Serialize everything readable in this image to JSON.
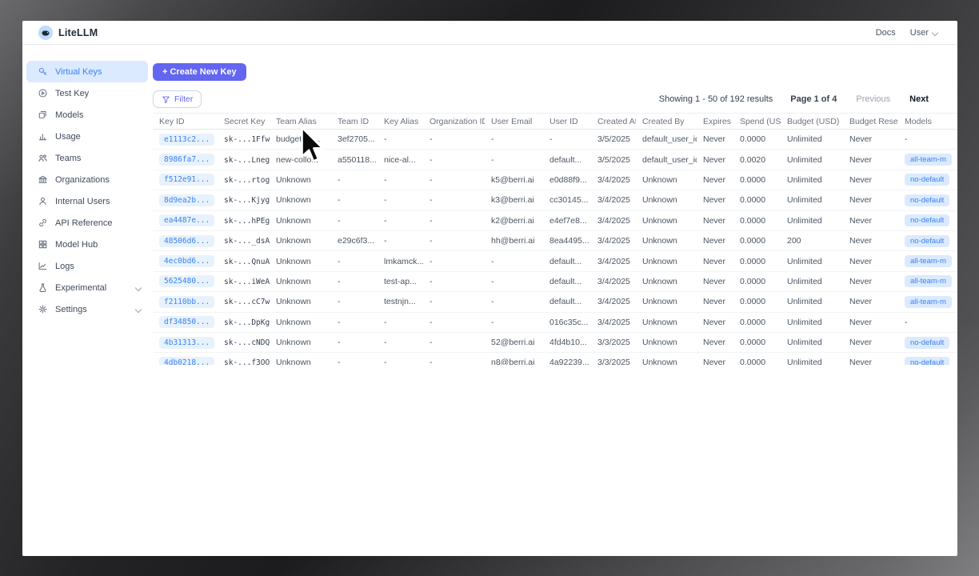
{
  "header": {
    "brand": "LiteLLM",
    "docs_label": "Docs",
    "user_label": "User"
  },
  "sidebar": {
    "items": [
      {
        "icon": "key-icon",
        "label": "Virtual Keys",
        "active": true,
        "expandable": false
      },
      {
        "icon": "play-circle-icon",
        "label": "Test Key",
        "active": false,
        "expandable": false
      },
      {
        "icon": "models-icon",
        "label": "Models",
        "active": false,
        "expandable": false
      },
      {
        "icon": "bar-chart-icon",
        "label": "Usage",
        "active": false,
        "expandable": false
      },
      {
        "icon": "teams-icon",
        "label": "Teams",
        "active": false,
        "expandable": false
      },
      {
        "icon": "bank-icon",
        "label": "Organizations",
        "active": false,
        "expandable": false
      },
      {
        "icon": "user-icon",
        "label": "Internal Users",
        "active": false,
        "expandable": false
      },
      {
        "icon": "link-icon",
        "label": "API Reference",
        "active": false,
        "expandable": false
      },
      {
        "icon": "grid-icon",
        "label": "Model Hub",
        "active": false,
        "expandable": false
      },
      {
        "icon": "line-chart-icon",
        "label": "Logs",
        "active": false,
        "expandable": false
      },
      {
        "icon": "flask-icon",
        "label": "Experimental",
        "active": false,
        "expandable": true
      },
      {
        "icon": "gear-icon",
        "label": "Settings",
        "active": false,
        "expandable": true
      }
    ]
  },
  "toolbar": {
    "create_button": "+ Create New Key",
    "filter_label": "Filter",
    "results_summary": "Showing 1 - 50 of 192 results",
    "page_indicator": "Page 1 of 4",
    "prev_label": "Previous",
    "next_label": "Next"
  },
  "table": {
    "columns": [
      {
        "key": "key_id",
        "label": "Key ID"
      },
      {
        "key": "secret_key",
        "label": "Secret Key"
      },
      {
        "key": "team_alias",
        "label": "Team Alias"
      },
      {
        "key": "team_id",
        "label": "Team ID"
      },
      {
        "key": "key_alias",
        "label": "Key Alias"
      },
      {
        "key": "org_id",
        "label": "Organization ID"
      },
      {
        "key": "user_email",
        "label": "User Email"
      },
      {
        "key": "user_id",
        "label": "User ID"
      },
      {
        "key": "created_at",
        "label": "Created At"
      },
      {
        "key": "created_by",
        "label": "Created By"
      },
      {
        "key": "expires",
        "label": "Expires"
      },
      {
        "key": "spend",
        "label": "Spend (USD)"
      },
      {
        "key": "budget",
        "label": "Budget (USD)"
      },
      {
        "key": "budget_reset",
        "label": "Budget Reset"
      },
      {
        "key": "models",
        "label": "Models"
      }
    ],
    "rows": [
      {
        "key_id": "e1113c2...",
        "secret_key": "sk-...1Ffw",
        "team_alias": "budget_te...",
        "team_id": "3ef2705...",
        "key_alias": "-",
        "org_id": "-",
        "user_email": "-",
        "user_id": "-",
        "created_at": "3/5/2025",
        "created_by": "default_user_id",
        "expires": "Never",
        "spend": "0.0000",
        "budget": "Unlimited",
        "budget_reset": "Never",
        "models": "-"
      },
      {
        "key_id": "8986fa7...",
        "secret_key": "sk-...Lneg",
        "team_alias": "new-collo...",
        "team_id": "a550118...",
        "key_alias": "nice-al...",
        "org_id": "-",
        "user_email": "-",
        "user_id": "default...",
        "created_at": "3/5/2025",
        "created_by": "default_user_id",
        "expires": "Never",
        "spend": "0.0020",
        "budget": "Unlimited",
        "budget_reset": "Never",
        "models": "all-team-m"
      },
      {
        "key_id": "f512e91...",
        "secret_key": "sk-...rtog",
        "team_alias": "Unknown",
        "team_id": "-",
        "key_alias": "-",
        "org_id": "-",
        "user_email": "k5@berri.ai",
        "user_id": "e0d88f9...",
        "created_at": "3/4/2025",
        "created_by": "Unknown",
        "expires": "Never",
        "spend": "0.0000",
        "budget": "Unlimited",
        "budget_reset": "Never",
        "models": "no-default"
      },
      {
        "key_id": "8d9ea2b...",
        "secret_key": "sk-...Kjyg",
        "team_alias": "Unknown",
        "team_id": "-",
        "key_alias": "-",
        "org_id": "-",
        "user_email": "k3@berri.ai",
        "user_id": "cc30145...",
        "created_at": "3/4/2025",
        "created_by": "Unknown",
        "expires": "Never",
        "spend": "0.0000",
        "budget": "Unlimited",
        "budget_reset": "Never",
        "models": "no-default"
      },
      {
        "key_id": "ea4487e...",
        "secret_key": "sk-...hPEg",
        "team_alias": "Unknown",
        "team_id": "-",
        "key_alias": "-",
        "org_id": "-",
        "user_email": "k2@berri.ai",
        "user_id": "e4ef7e8...",
        "created_at": "3/4/2025",
        "created_by": "Unknown",
        "expires": "Never",
        "spend": "0.0000",
        "budget": "Unlimited",
        "budget_reset": "Never",
        "models": "no-default"
      },
      {
        "key_id": "48506d6...",
        "secret_key": "sk-..._dsA",
        "team_alias": "Unknown",
        "team_id": "e29c6f3...",
        "key_alias": "-",
        "org_id": "-",
        "user_email": "hh@berri.ai",
        "user_id": "8ea4495...",
        "created_at": "3/4/2025",
        "created_by": "Unknown",
        "expires": "Never",
        "spend": "0.0000",
        "budget": "200",
        "budget_reset": "Never",
        "models": "no-default"
      },
      {
        "key_id": "4ec0bd6...",
        "secret_key": "sk-...QnuA",
        "team_alias": "Unknown",
        "team_id": "-",
        "key_alias": "lmkamck...",
        "org_id": "-",
        "user_email": "-",
        "user_id": "default...",
        "created_at": "3/4/2025",
        "created_by": "Unknown",
        "expires": "Never",
        "spend": "0.0000",
        "budget": "Unlimited",
        "budget_reset": "Never",
        "models": "all-team-m"
      },
      {
        "key_id": "5625480...",
        "secret_key": "sk-...iWeA",
        "team_alias": "Unknown",
        "team_id": "-",
        "key_alias": "test-ap...",
        "org_id": "-",
        "user_email": "-",
        "user_id": "default...",
        "created_at": "3/4/2025",
        "created_by": "Unknown",
        "expires": "Never",
        "spend": "0.0000",
        "budget": "Unlimited",
        "budget_reset": "Never",
        "models": "all-team-m"
      },
      {
        "key_id": "f2110bb...",
        "secret_key": "sk-...cC7w",
        "team_alias": "Unknown",
        "team_id": "-",
        "key_alias": "testnjn...",
        "org_id": "-",
        "user_email": "-",
        "user_id": "default...",
        "created_at": "3/4/2025",
        "created_by": "Unknown",
        "expires": "Never",
        "spend": "0.0000",
        "budget": "Unlimited",
        "budget_reset": "Never",
        "models": "all-team-m"
      },
      {
        "key_id": "df34850...",
        "secret_key": "sk-...DpKg",
        "team_alias": "Unknown",
        "team_id": "-",
        "key_alias": "-",
        "org_id": "-",
        "user_email": "-",
        "user_id": "016c35c...",
        "created_at": "3/4/2025",
        "created_by": "Unknown",
        "expires": "Never",
        "spend": "0.0000",
        "budget": "Unlimited",
        "budget_reset": "Never",
        "models": "-"
      },
      {
        "key_id": "4b31313...",
        "secret_key": "sk-...cNDQ",
        "team_alias": "Unknown",
        "team_id": "-",
        "key_alias": "-",
        "org_id": "-",
        "user_email": "52@berri.ai",
        "user_id": "4fd4b10...",
        "created_at": "3/3/2025",
        "created_by": "Unknown",
        "expires": "Never",
        "spend": "0.0000",
        "budget": "Unlimited",
        "budget_reset": "Never",
        "models": "no-default"
      },
      {
        "key_id": "4db0218...",
        "secret_key": "sk-...f3OO",
        "team_alias": "Unknown",
        "team_id": "-",
        "key_alias": "-",
        "org_id": "-",
        "user_email": "n8@berri.ai",
        "user_id": "4a92239...",
        "created_at": "3/3/2025",
        "created_by": "Unknown",
        "expires": "Never",
        "spend": "0.0000",
        "budget": "Unlimited",
        "budget_reset": "Never",
        "models": "no-default"
      }
    ]
  },
  "colors": {
    "accent": "#6366f1",
    "active_nav_bg": "#dbeafe",
    "active_nav_text": "#3b82f6",
    "badge_bg": "#dbeafe",
    "badge_text": "#3b82f6",
    "key_pill_bg": "#e8f2fc"
  }
}
